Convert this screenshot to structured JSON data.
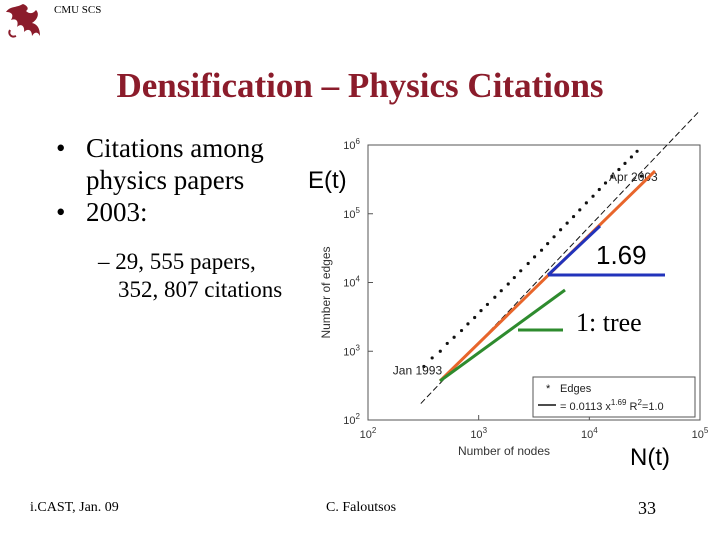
{
  "header": {
    "logo_icon": "dragon-logo-icon",
    "logo_text": "CMU SCS"
  },
  "slide": {
    "title": "Densification – Physics Citations",
    "bullets": [
      {
        "marker": "•",
        "lines": [
          "Citations among",
          "physics papers"
        ]
      },
      {
        "marker": "•",
        "lines": [
          "2003:"
        ]
      }
    ],
    "sub_bullets": [
      {
        "marker": "–",
        "lines": [
          "29, 555 papers,",
          "352, 807 citations"
        ]
      }
    ],
    "label_e": "E(t)",
    "label_n": "N(t)",
    "label_slope": "1.69",
    "label_tree": "1: tree"
  },
  "chart_data": {
    "type": "scatter",
    "scale": "log-log",
    "xlabel": "Number of nodes",
    "ylabel": "Number of edges",
    "xlim": [
      100,
      100000
    ],
    "ylim": [
      100,
      1000000
    ],
    "x_ticks": [
      {
        "value": 100,
        "base": "10",
        "exp": "2"
      },
      {
        "value": 1000,
        "base": "10",
        "exp": "3"
      },
      {
        "value": 10000,
        "base": "10",
        "exp": "4"
      },
      {
        "value": 100000,
        "base": "10",
        "exp": "5"
      }
    ],
    "y_ticks": [
      {
        "value": 100,
        "base": "10",
        "exp": "2"
      },
      {
        "value": 1000,
        "base": "10",
        "exp": "3"
      },
      {
        "value": 10000,
        "base": "10",
        "exp": "4"
      },
      {
        "value": 100000,
        "base": "10",
        "exp": "5"
      },
      {
        "value": 1000000,
        "base": "10",
        "exp": "6"
      }
    ],
    "annotations": [
      {
        "text": "Apr 2003",
        "x": 25000,
        "y": 300000
      },
      {
        "text": "Jan 1993",
        "x": 280,
        "y": 460
      }
    ],
    "series": [
      {
        "name": "Edges",
        "marker": "dot",
        "x": [
          320,
          380,
          450,
          520,
          600,
          700,
          800,
          920,
          1050,
          1200,
          1400,
          1600,
          1850,
          2100,
          2400,
          2800,
          3200,
          3700,
          4200,
          4800,
          5500,
          6300,
          7200,
          8200,
          9400,
          10800,
          12300,
          14000,
          16000,
          18500,
          21000,
          24000,
          27000,
          29555
        ],
        "y": [
          600,
          800,
          1000,
          1300,
          1600,
          2000,
          2500,
          3100,
          3900,
          4800,
          6100,
          7600,
          9500,
          11800,
          14800,
          18900,
          23600,
          29500,
          36800,
          46200,
          58500,
          73000,
          91000,
          114000,
          144000,
          180000,
          225000,
          280000,
          350000,
          440000,
          540000,
          670000,
          810000,
          352807
        ]
      }
    ],
    "fit": {
      "label_prefix": "= 0.0113 x",
      "label_exp": "1.69",
      "label_r2": "R",
      "label_r2_exp": "2",
      "label_r2_value": "=1.0",
      "coef": 0.0113,
      "exponent": 1.69,
      "line_from_x": 300,
      "line_to_x": 100000
    },
    "legend": {
      "position": "bottom-right",
      "entries": [
        "Edges"
      ]
    },
    "overlay_lines": {
      "fit_color": "#e8652b",
      "slope_color": "#2233bb",
      "tree_color": "#2e8b2e"
    }
  },
  "footer": {
    "left": "i.CAST, Jan. 09",
    "center": "C. Faloutsos",
    "page": "33"
  },
  "colors": {
    "title": "#8b1c2b",
    "logo": "#8b1c2b"
  }
}
